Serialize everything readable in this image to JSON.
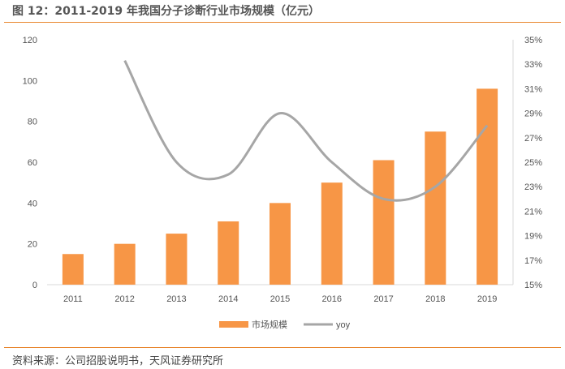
{
  "title": "图 12：2011-2019 年我国分子诊断行业市场规模（亿元）",
  "source": "资料来源：公司招股说明书，天风证券研究所",
  "chart_data": {
    "type": "bar",
    "categories": [
      "2011",
      "2012",
      "2013",
      "2014",
      "2015",
      "2016",
      "2017",
      "2018",
      "2019"
    ],
    "series": [
      {
        "name": "市场规模",
        "type": "bar",
        "axis": "left",
        "color": "#f79646",
        "values": [
          15,
          20,
          25,
          31,
          40,
          50,
          61,
          75,
          96
        ]
      },
      {
        "name": "yoy",
        "type": "line",
        "axis": "right",
        "color": "#a6a6a6",
        "values": [
          null,
          33.3,
          25.0,
          24.0,
          29.0,
          25.0,
          22.0,
          23.0,
          28.0
        ]
      }
    ],
    "left_axis": {
      "ylim": [
        0,
        120
      ],
      "ticks": [
        "0",
        "20",
        "40",
        "60",
        "80",
        "100",
        "120"
      ]
    },
    "right_axis": {
      "ylim": [
        15,
        35
      ],
      "ticks": [
        "15%",
        "17%",
        "19%",
        "21%",
        "23%",
        "25%",
        "27%",
        "29%",
        "31%",
        "33%",
        "35%"
      ]
    },
    "grid": false,
    "legend_position": "bottom"
  }
}
